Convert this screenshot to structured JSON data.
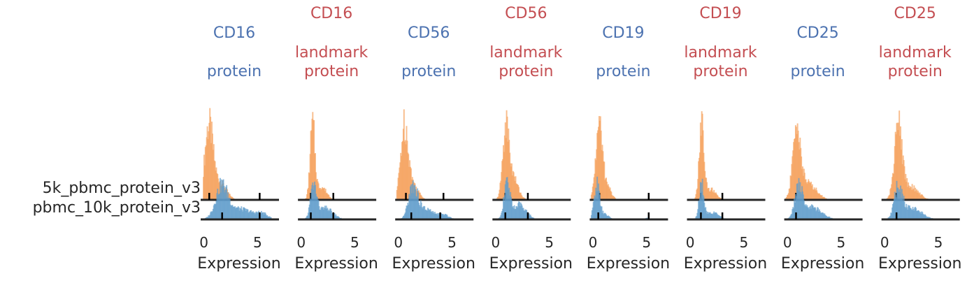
{
  "chart_data": {
    "type": "histogram-ridgeline",
    "rows": [
      {
        "label": "5k_pbmc_protein_v3",
        "color": "#f5a05a"
      },
      {
        "label": "pbmc_10k_protein_v3",
        "color": "#5f9dcc"
      }
    ],
    "axis_color": "#262626",
    "xlabel": "Expression",
    "xticks": [
      0,
      5
    ],
    "xlim": [
      -0.3,
      7
    ],
    "panels": [
      {
        "title_lines": [
          "CD16",
          "",
          "protein"
        ],
        "title_color": "#4c72b0",
        "marks": [
          0.5,
          5.2
        ],
        "bins": [
          0.1,
          5.0
        ],
        "rows": [
          {
            "peaks": [
              [
                0.4,
                0.38,
                1.0
              ],
              [
                1.4,
                0.6,
                0.25
              ]
            ],
            "markers": [
              0.5,
              5.2
            ]
          },
          {
            "peaks": [
              [
                1.6,
                0.55,
                0.85
              ],
              [
                3.2,
                1.3,
                0.3
              ],
              [
                5.4,
                0.5,
                0.12
              ]
            ],
            "markers": [
              1.7,
              5.2
            ]
          }
        ]
      },
      {
        "title_lines": [
          "CD16",
          "landmark",
          "protein"
        ],
        "title_color": "#c44e52",
        "marks": [
          0.9,
          3.0
        ],
        "bins": [
          0.2,
          4.0
        ],
        "rows": [
          {
            "peaks": [
              [
                1.0,
                0.22,
                1.0
              ],
              [
                1.8,
                0.5,
                0.18
              ]
            ],
            "markers": [
              0.9,
              3.0
            ]
          },
          {
            "peaks": [
              [
                1.1,
                0.28,
                1.0
              ],
              [
                2.2,
                0.7,
                0.35
              ]
            ],
            "markers": [
              0.9,
              3.0
            ]
          }
        ]
      },
      {
        "title_lines": [
          "CD56",
          "",
          "protein"
        ],
        "title_color": "#4c72b0",
        "marks": [
          0.7,
          4.2
        ],
        "bins": [
          0.0,
          5.0
        ],
        "rows": [
          {
            "peaks": [
              [
                0.5,
                0.35,
                1.0
              ],
              [
                1.3,
                0.5,
                0.2
              ]
            ],
            "markers": [
              0.7,
              4.2
            ]
          },
          {
            "peaks": [
              [
                1.3,
                0.4,
                0.9
              ],
              [
                2.4,
                0.8,
                0.3
              ],
              [
                4.2,
                0.5,
                0.12
              ]
            ],
            "markers": [
              1.2,
              3.9
            ]
          }
        ]
      },
      {
        "title_lines": [
          "CD56",
          "landmark",
          "protein"
        ],
        "title_color": "#c44e52",
        "marks": [
          0.9,
          3.0
        ],
        "bins": [
          0.2,
          4.0
        ],
        "rows": [
          {
            "peaks": [
              [
                0.9,
                0.3,
                1.0
              ],
              [
                1.6,
                0.45,
                0.3
              ]
            ],
            "markers": [
              0.9,
              3.0
            ]
          },
          {
            "peaks": [
              [
                1.0,
                0.3,
                0.9
              ],
              [
                2.2,
                0.6,
                0.4
              ]
            ],
            "markers": [
              0.9,
              3.0
            ]
          }
        ]
      },
      {
        "title_lines": [
          "CD19",
          "",
          "protein"
        ],
        "title_color": "#4c72b0",
        "marks": [
          0.6,
          5.2
        ],
        "bins": [
          0.0,
          5.5
        ],
        "rows": [
          {
            "peaks": [
              [
                0.5,
                0.3,
                1.0
              ],
              [
                1.2,
                0.4,
                0.2
              ]
            ],
            "markers": [
              0.6,
              5.2
            ]
          },
          {
            "peaks": [
              [
                0.3,
                0.25,
                1.0
              ],
              [
                1.0,
                0.4,
                0.15
              ],
              [
                5.0,
                0.2,
                0.05
              ]
            ],
            "markers": [
              0.5,
              5.2
            ]
          }
        ]
      },
      {
        "title_lines": [
          "CD19",
          "landmark",
          "protein"
        ],
        "title_color": "#c44e52",
        "marks": [
          1.0,
          3.0
        ],
        "bins": [
          0.2,
          4.0
        ],
        "rows": [
          {
            "peaks": [
              [
                1.0,
                0.22,
                1.0
              ],
              [
                1.8,
                0.5,
                0.15
              ]
            ],
            "markers": [
              1.0,
              3.0
            ]
          },
          {
            "peaks": [
              [
                1.0,
                0.22,
                1.0
              ],
              [
                2.0,
                0.6,
                0.2
              ]
            ],
            "markers": [
              1.0,
              3.0
            ]
          }
        ]
      },
      {
        "title_lines": [
          "CD25",
          "",
          "protein"
        ],
        "title_color": "#4c72b0",
        "marks": [
          0.8
        ],
        "bins": [
          0.0,
          4.5
        ],
        "rows": [
          {
            "peaks": [
              [
                0.8,
                0.35,
                1.0
              ],
              [
                1.8,
                0.8,
                0.25
              ]
            ],
            "markers": [
              0.8
            ]
          },
          {
            "peaks": [
              [
                1.0,
                0.35,
                1.0
              ],
              [
                2.2,
                0.9,
                0.4
              ]
            ],
            "markers": [
              0.8
            ]
          }
        ]
      },
      {
        "title_lines": [
          "CD25",
          "landmark",
          "protein"
        ],
        "title_color": "#c44e52",
        "marks": [
          1.1
        ],
        "bins": [
          0.0,
          4.5
        ],
        "rows": [
          {
            "peaks": [
              [
                1.2,
                0.35,
                1.0
              ],
              [
                2.2,
                0.8,
                0.2
              ]
            ],
            "markers": [
              1.1
            ]
          },
          {
            "peaks": [
              [
                1.2,
                0.35,
                1.0
              ],
              [
                2.4,
                0.9,
                0.4
              ]
            ],
            "markers": [
              1.1
            ]
          }
        ]
      }
    ]
  }
}
